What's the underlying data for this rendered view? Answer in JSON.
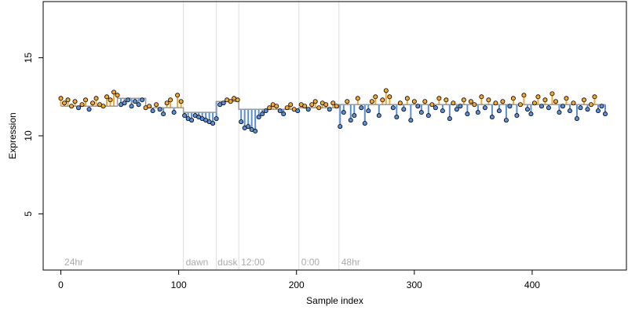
{
  "chart_data": {
    "type": "scatter",
    "title": "",
    "xlabel": "Sample index",
    "ylabel": "Expression",
    "xlim": [
      -15,
      480
    ],
    "ylim": [
      1.4,
      18.6
    ],
    "xticks": [
      0,
      100,
      200,
      300,
      400
    ],
    "yticks": [
      5,
      10,
      15
    ],
    "grid": false,
    "vlines": [
      104,
      132,
      151,
      202,
      236
    ],
    "annotations": [
      {
        "label": "24hr",
        "x": 3
      },
      {
        "label": "dawn",
        "x": 106
      },
      {
        "label": "dusk",
        "x": 133
      },
      {
        "label": "12:00",
        "x": 153
      },
      {
        "label": "0:00",
        "x": 204
      },
      {
        "label": "48hr",
        "x": 238
      }
    ],
    "colors": {
      "above": "#f0a830",
      "below": "#5a8fd8",
      "step": "#999999",
      "vline": "#dddddd",
      "annotation": "#aaaaaa"
    },
    "levels": [
      {
        "x0": 0,
        "x1": 48,
        "y": 11.9
      },
      {
        "x0": 48,
        "x1": 72,
        "y": 12.4
      },
      {
        "x0": 72,
        "x1": 104,
        "y": 11.8
      },
      {
        "x0": 104,
        "x1": 132,
        "y": 11.5
      },
      {
        "x0": 132,
        "x1": 151,
        "y": 12.2
      },
      {
        "x0": 151,
        "x1": 202,
        "y": 11.7
      },
      {
        "x0": 202,
        "x1": 236,
        "y": 11.8
      },
      {
        "x0": 236,
        "x1": 462,
        "y": 12.0
      }
    ],
    "series": [
      {
        "x": [
          0,
          3,
          6,
          9,
          12,
          15,
          18,
          21,
          24,
          27,
          30,
          33,
          36,
          39,
          42,
          45,
          48,
          51,
          54,
          57,
          60,
          63,
          66,
          69,
          72,
          75,
          78,
          81,
          84,
          87,
          90,
          93,
          96,
          99,
          102,
          105,
          108,
          111,
          114,
          117,
          120,
          123,
          126,
          129,
          132,
          135,
          138,
          141,
          144,
          147,
          150,
          153,
          156,
          159,
          162,
          165,
          168,
          171,
          174,
          177,
          180,
          183,
          186,
          189,
          192,
          195,
          198,
          201,
          204,
          207,
          210,
          213,
          216,
          219,
          222,
          225,
          228,
          231,
          234,
          237,
          240,
          243,
          246,
          249,
          252,
          255,
          258,
          261,
          264,
          267,
          270,
          273,
          276,
          279,
          282,
          285,
          288,
          291,
          294,
          297,
          300,
          303,
          306,
          309,
          312,
          315,
          318,
          321,
          324,
          327,
          330,
          333,
          336,
          339,
          342,
          345,
          348,
          351,
          354,
          357,
          360,
          363,
          366,
          369,
          372,
          375,
          378,
          381,
          384,
          387,
          390,
          393,
          396,
          399,
          402,
          405,
          408,
          411,
          414,
          417,
          420,
          423,
          426,
          429,
          432,
          435,
          438,
          441,
          444,
          447,
          450,
          453,
          456,
          459,
          462
        ],
        "y": [
          12.4,
          12.1,
          12.3,
          11.9,
          12.2,
          11.8,
          12.0,
          12.3,
          11.7,
          12.1,
          12.4,
          12.0,
          11.9,
          12.5,
          12.3,
          12.8,
          12.6,
          12.0,
          12.1,
          12.3,
          11.9,
          12.2,
          12.0,
          12.3,
          11.8,
          11.9,
          11.6,
          12.0,
          11.7,
          11.4,
          12.1,
          12.3,
          11.5,
          12.6,
          12.2,
          11.3,
          11.1,
          11.0,
          11.3,
          11.2,
          11.1,
          11.0,
          10.9,
          10.8,
          11.1,
          12.0,
          12.1,
          12.3,
          12.2,
          12.4,
          12.3,
          10.9,
          10.5,
          10.6,
          10.4,
          10.3,
          11.2,
          11.4,
          11.6,
          11.8,
          12.0,
          11.9,
          11.6,
          11.4,
          11.8,
          12.0,
          11.7,
          11.6,
          12.0,
          11.9,
          11.7,
          12.0,
          12.2,
          11.8,
          12.1,
          12.0,
          11.7,
          12.1,
          11.9,
          10.6,
          11.5,
          12.2,
          11.0,
          11.3,
          12.4,
          11.8,
          10.8,
          11.6,
          12.2,
          12.5,
          11.3,
          12.3,
          12.9,
          12.5,
          11.8,
          11.2,
          12.1,
          11.7,
          12.4,
          11.0,
          12.2,
          11.9,
          11.5,
          12.2,
          11.3,
          12.0,
          11.8,
          12.4,
          11.6,
          12.3,
          11.1,
          12.1,
          11.7,
          11.9,
          12.3,
          11.4,
          12.2,
          12.0,
          11.5,
          12.5,
          11.8,
          12.3,
          11.2,
          12.1,
          11.6,
          12.2,
          11.0,
          11.9,
          12.4,
          11.3,
          12.0,
          12.6,
          11.7,
          11.4,
          12.1,
          12.5,
          11.9,
          12.3,
          11.8,
          12.7,
          12.2,
          11.5,
          11.9,
          12.4,
          11.6,
          12.1,
          11.1,
          11.8,
          12.3,
          11.7,
          12.0,
          12.5,
          11.6,
          11.9,
          11.4
        ]
      }
    ]
  }
}
